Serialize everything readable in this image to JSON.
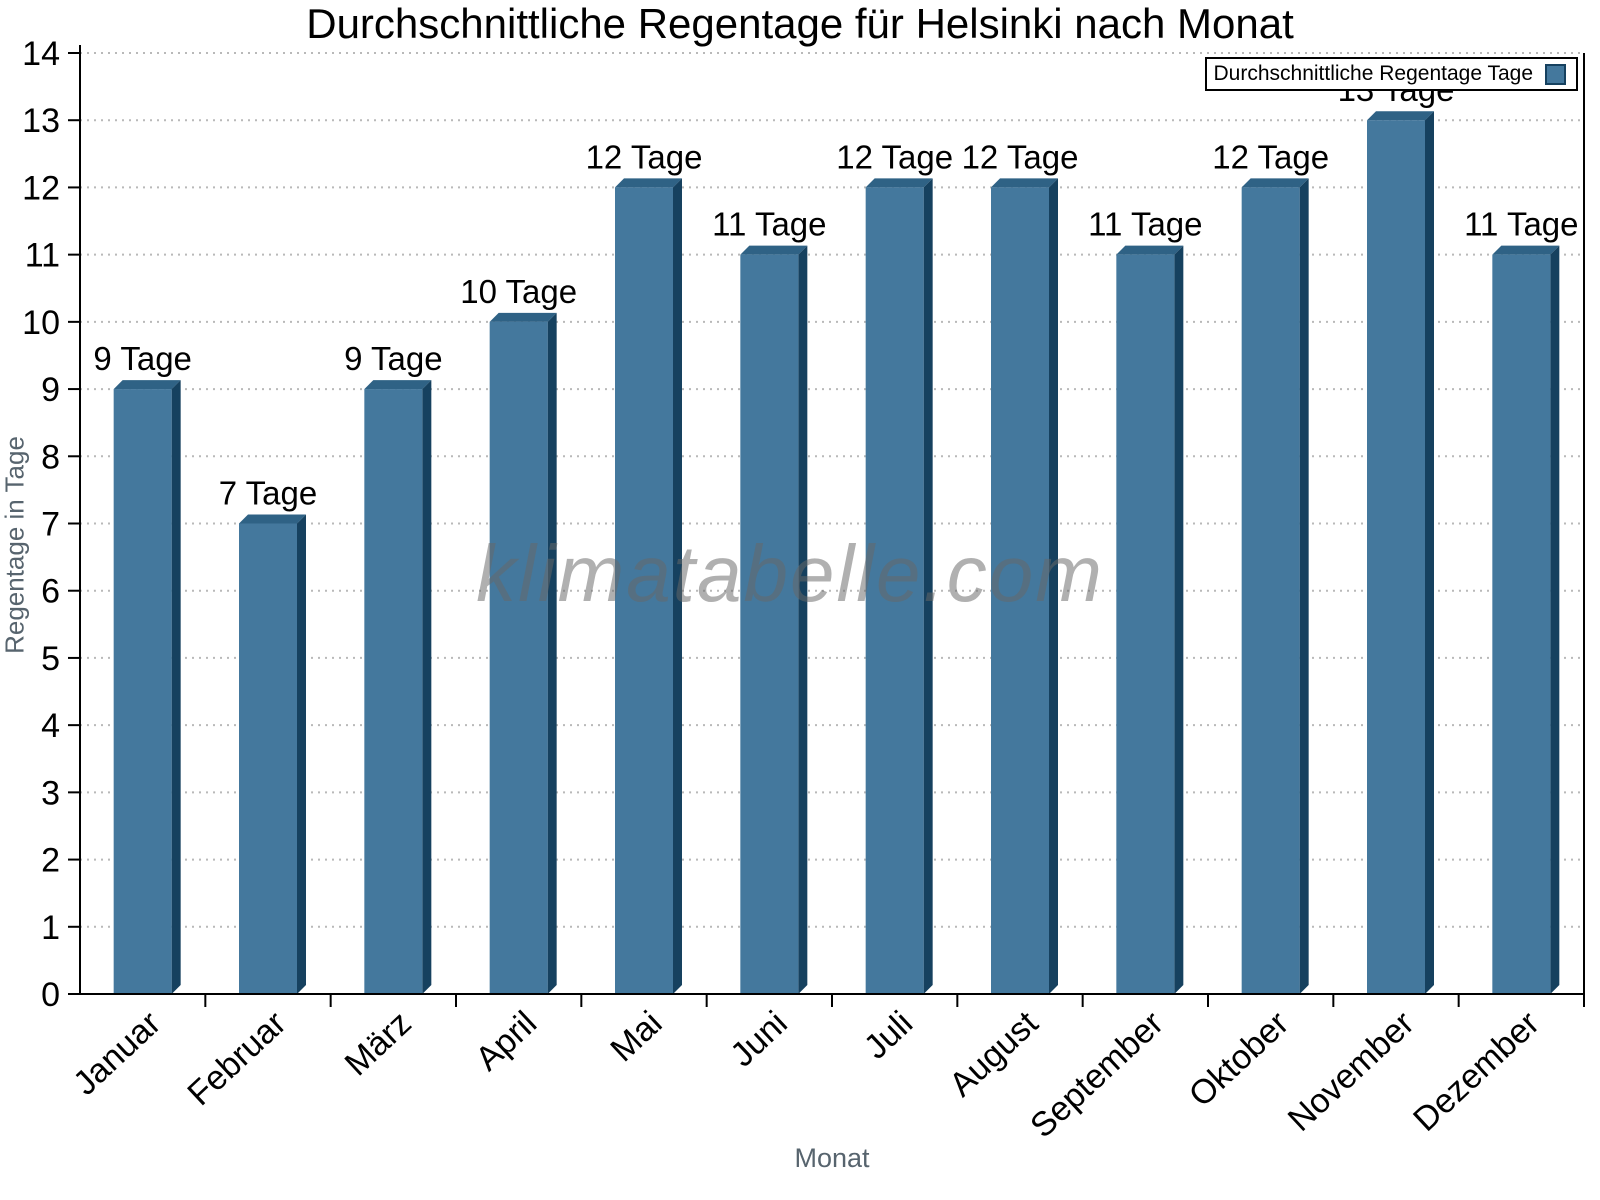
{
  "title": "Durchschnittliche Regentage für Helsinki nach Monat",
  "legend": {
    "label": "Durchschnittliche Regentage Tage"
  },
  "watermark": "klimatabelle.com",
  "axes": {
    "x_label": "Monat",
    "y_label": "Regentage in Tage"
  },
  "chart_data": {
    "type": "bar",
    "title": "Durchschnittliche Regentage für Helsinki nach Monat",
    "categories": [
      "Januar",
      "Februar",
      "März",
      "April",
      "Mai",
      "Juni",
      "Juli",
      "August",
      "September",
      "Oktober",
      "November",
      "Dezember"
    ],
    "series": [
      {
        "name": "Durchschnittliche Regentage Tage",
        "values": [
          9,
          7,
          9,
          10,
          12,
          11,
          12,
          12,
          11,
          12,
          13,
          11
        ]
      }
    ],
    "value_label_suffix": " Tage",
    "xlabel": "Monat",
    "ylabel": "Regentage in Tage",
    "ylim": [
      0,
      14
    ],
    "ytick_step": 1,
    "grid": "horizontal-dotted",
    "legend_position": "top-right"
  },
  "colors": {
    "bar_front": "#44789d",
    "bar_top": "#2f6285",
    "bar_side": "#16415f",
    "grid": "#b9b9b9",
    "axis": "#000000",
    "text": "#000000",
    "axis_title": "#57646e",
    "watermark": "#686868"
  }
}
